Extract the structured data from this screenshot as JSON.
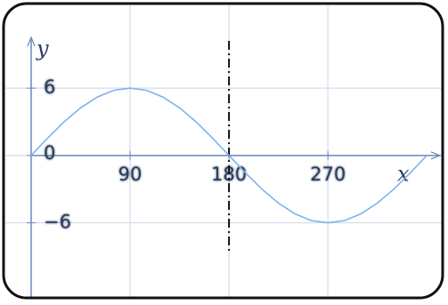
{
  "chart_data": {
    "type": "line",
    "x": [
      0,
      15,
      30,
      45,
      60,
      75,
      90,
      105,
      120,
      135,
      150,
      165,
      180,
      195,
      210,
      225,
      240,
      255,
      270,
      285,
      300,
      315,
      330,
      345,
      360
    ],
    "series": [
      {
        "color": "#7fb2ee",
        "values": [
          0,
          1.55,
          3,
          4.24,
          5.2,
          5.8,
          6,
          5.8,
          5.2,
          4.24,
          3,
          1.55,
          0,
          -1.55,
          -3,
          -4.24,
          -5.2,
          -5.8,
          -6,
          -5.8,
          -5.2,
          -4.24,
          -3,
          -1.55,
          0
        ]
      }
    ],
    "xlabel": "x",
    "ylabel": "y",
    "xlim": [
      0,
      372
    ],
    "ylim": [
      -11.5,
      11
    ],
    "xticks": [
      90,
      180,
      270
    ],
    "yticks": [
      6,
      0,
      {
        "value": -6,
        "label": "−6"
      }
    ],
    "vline": 180,
    "grid": true
  }
}
